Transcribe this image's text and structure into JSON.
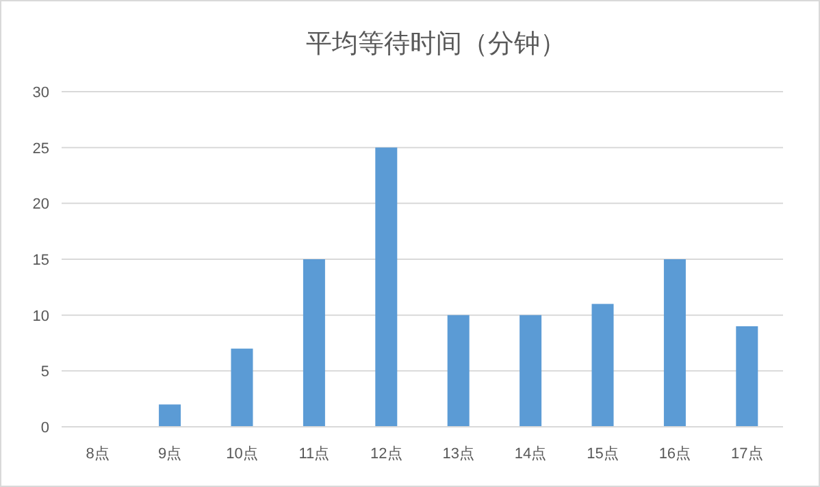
{
  "chart_data": {
    "type": "bar",
    "title": "平均等待时间（分钟）",
    "categories": [
      "8点",
      "9点",
      "10点",
      "11点",
      "12点",
      "13点",
      "14点",
      "15点",
      "16点",
      "17点"
    ],
    "values": [
      0,
      2,
      7,
      15,
      25,
      10,
      10,
      11,
      15,
      9
    ],
    "color": "#5b9bd5",
    "ylim": [
      0,
      30
    ],
    "yticks": [
      0,
      5,
      10,
      15,
      20,
      25,
      30
    ],
    "grid": "y"
  }
}
